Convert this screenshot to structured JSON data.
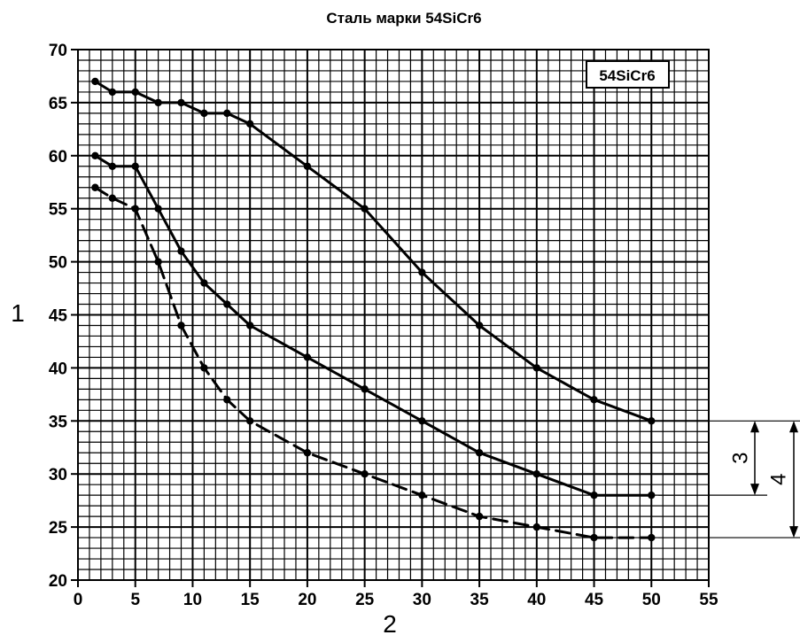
{
  "chart_data": {
    "type": "line",
    "title": "Сталь марки 54SiCr6",
    "legend_box_label": "54SiCr6",
    "xlabel": "2",
    "ylabel": "1",
    "xlim": [
      0,
      55
    ],
    "ylim": [
      20,
      70
    ],
    "xticks": [
      0,
      5,
      10,
      15,
      20,
      25,
      30,
      35,
      40,
      45,
      50,
      55
    ],
    "yticks": [
      20,
      25,
      30,
      35,
      40,
      45,
      50,
      55,
      60,
      65,
      70
    ],
    "grid": true,
    "series": [
      {
        "style": "solid",
        "x": [
          1.5,
          3,
          5,
          7,
          9,
          11,
          13,
          15,
          20,
          25,
          30,
          35,
          40,
          45,
          50
        ],
        "y": [
          67,
          66,
          66,
          65,
          65,
          64,
          64,
          63,
          59,
          55,
          49,
          44,
          40,
          37,
          35
        ]
      },
      {
        "style": "solid",
        "x": [
          1.5,
          3,
          5,
          7,
          9,
          11,
          13,
          15,
          20,
          25,
          30,
          35,
          40,
          45,
          50
        ],
        "y": [
          60,
          59,
          59,
          55,
          51,
          48,
          46,
          44,
          41,
          38,
          35,
          32,
          30,
          28,
          28
        ]
      },
      {
        "style": "dashed",
        "x": [
          1.5,
          3,
          5,
          7,
          9,
          11,
          13,
          15,
          20,
          25,
          30,
          35,
          40,
          45,
          50
        ],
        "y": [
          57,
          56,
          55,
          50,
          44,
          40,
          37,
          35,
          32,
          30,
          28,
          26,
          25,
          24,
          24
        ]
      }
    ],
    "annotations": [
      {
        "label": "3",
        "from": 35,
        "to": 28
      },
      {
        "label": "4",
        "from": 35,
        "to": 24
      }
    ]
  }
}
